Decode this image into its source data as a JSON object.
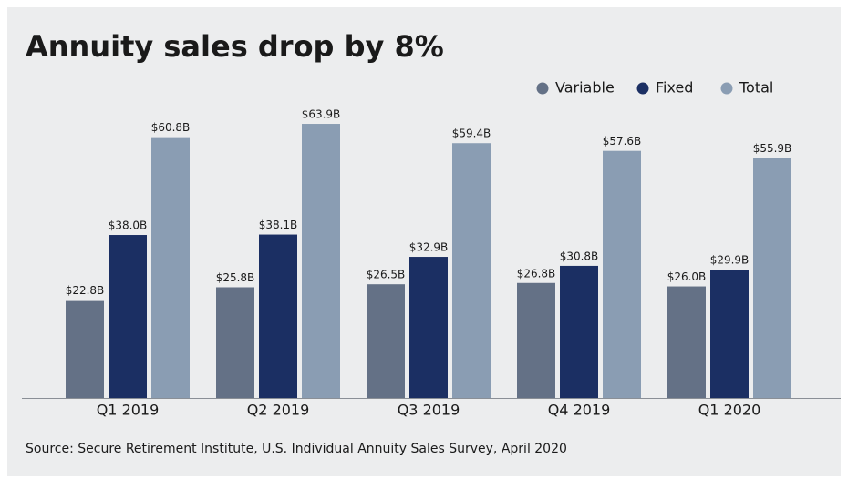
{
  "chart_data": {
    "type": "bar",
    "title": "Annuity sales drop by 8%",
    "source": "Source: Secure Retirement Institute, U.S. Individual Annuity Sales Survey, April 2020",
    "categories": [
      "Q1 2019",
      "Q2 2019",
      "Q3 2019",
      "Q4 2019",
      "Q1 2020"
    ],
    "series": [
      {
        "name": "Variable",
        "color": "#647186",
        "values": [
          22.8,
          25.8,
          26.5,
          26.8,
          26.0
        ],
        "value_labels": [
          "$22.8B",
          "$25.8B",
          "$26.5B",
          "$26.8B",
          "$26.0B"
        ]
      },
      {
        "name": "Fixed",
        "color": "#1b2f63",
        "values": [
          38.0,
          38.1,
          32.9,
          30.8,
          29.9
        ],
        "value_labels": [
          "$38.0B",
          "$38.1B",
          "$32.9B",
          "$30.8B",
          "$29.9B"
        ]
      },
      {
        "name": "Total",
        "color": "#8a9db3",
        "values": [
          60.8,
          63.9,
          59.4,
          57.6,
          55.9
        ],
        "value_labels": [
          "$60.8B",
          "$63.9B",
          "$59.4B",
          "$57.6B",
          "$55.9B"
        ]
      }
    ],
    "legend": "top-right"
  }
}
